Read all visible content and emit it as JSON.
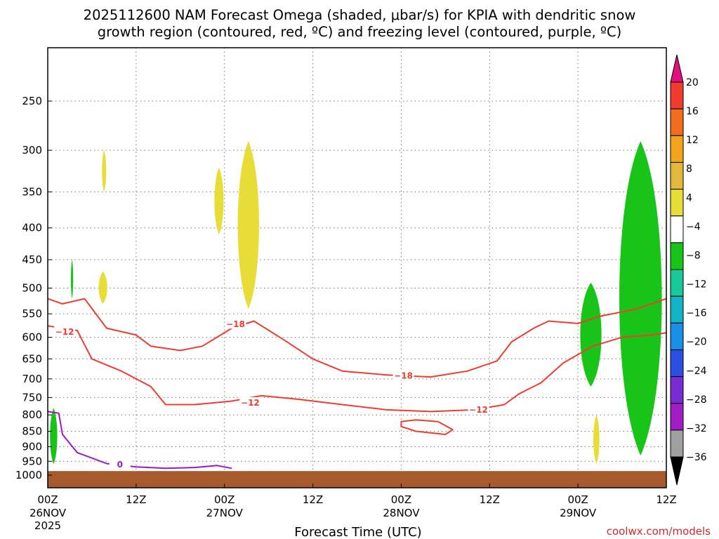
{
  "title": {
    "line1": "2025112600 NAM Forecast Omega (shaded, μbar/s) for KPIA with dendritic snow",
    "line2": "growth region (contoured, red, ºC) and freezing level (contoured, purple, ºC)"
  },
  "chart_data": {
    "type": "time-height cross section (filled contours + line contours)",
    "xlabel": "Forecast Time (UTC)",
    "x_range_hours": [
      0,
      84
    ],
    "x_ticks": [
      {
        "hour": 0,
        "label": "00Z",
        "sub": "26NOV",
        "sub2": "2025"
      },
      {
        "hour": 12,
        "label": "12Z",
        "sub": "",
        "sub2": ""
      },
      {
        "hour": 24,
        "label": "00Z",
        "sub": "27NOV",
        "sub2": ""
      },
      {
        "hour": 36,
        "label": "12Z",
        "sub": "",
        "sub2": ""
      },
      {
        "hour": 48,
        "label": "00Z",
        "sub": "28NOV",
        "sub2": ""
      },
      {
        "hour": 60,
        "label": "12Z",
        "sub": "",
        "sub2": ""
      },
      {
        "hour": 72,
        "label": "00Z",
        "sub": "29NOV",
        "sub2": ""
      },
      {
        "hour": 84,
        "label": "12Z",
        "sub": "",
        "sub2": ""
      }
    ],
    "y_axis": "pressure (hPa), log scale, inverted",
    "y_ticks": [
      250,
      300,
      350,
      400,
      450,
      500,
      550,
      600,
      650,
      700,
      750,
      800,
      850,
      900,
      950,
      1000
    ],
    "gridlines": "dotted",
    "colorbar": {
      "field": "omega (μbar/s)",
      "labels": [
        20,
        16,
        12,
        8,
        4,
        -4,
        -8,
        -12,
        -16,
        -20,
        -24,
        -28,
        -32,
        -36
      ],
      "bins": [
        {
          "range": ">20",
          "color": "#e0117e"
        },
        {
          "range": "16 to 20",
          "color": "#f03c2e"
        },
        {
          "range": "12 to 16",
          "color": "#f16e1f"
        },
        {
          "range": "8 to 12",
          "color": "#f2a51c"
        },
        {
          "range": "4 to 8",
          "color": "#e2b93a"
        },
        {
          "range": "4 to 4 (yellow)",
          "color": "#e8dc36"
        },
        {
          "range": "-4 to 4",
          "color": "#ffffff"
        },
        {
          "range": "-8 to -4",
          "color": "#19c419"
        },
        {
          "range": "-12 to -8",
          "color": "#19c99a"
        },
        {
          "range": "-16 to -12",
          "color": "#12b4c7"
        },
        {
          "range": "-20 to -16",
          "color": "#1a8fe8"
        },
        {
          "range": "-24 to -20",
          "color": "#2b4fe0"
        },
        {
          "range": "-28 to -24",
          "color": "#7a2bd1"
        },
        {
          "range": "-32 to -28",
          "color": "#a21cc4"
        },
        {
          "range": "-36 to -32",
          "color": "#a0a0a0"
        },
        {
          "range": "<-36",
          "color": "#000000"
        }
      ]
    },
    "omega_shading": [
      {
        "sign": "rising (green)",
        "color": "#19c419",
        "hour": [
          0.2,
          1.4
        ],
        "p": [
          780,
          960
        ]
      },
      {
        "sign": "rising (green)",
        "color": "#19c419",
        "hour": [
          3.2,
          3.4
        ],
        "p": [
          450,
          520
        ]
      },
      {
        "sign": "sinking (yellow)",
        "color": "#e8dc36",
        "hour": [
          6.8,
          8.2
        ],
        "p": [
          470,
          530
        ]
      },
      {
        "sign": "sinking (yellow)",
        "color": "#e8dc36",
        "hour": [
          7.3,
          8.0
        ],
        "p": [
          300,
          350
        ]
      },
      {
        "sign": "sinking (yellow)",
        "color": "#e8dc36",
        "hour": [
          22.5,
          24.0
        ],
        "p": [
          320,
          410
        ]
      },
      {
        "sign": "sinking (yellow)",
        "color": "#e8dc36",
        "hour": [
          25.5,
          29.0
        ],
        "p": [
          290,
          540
        ]
      },
      {
        "sign": "sinking (yellow)",
        "color": "#e8dc36",
        "hour": [
          74.0,
          75.0
        ],
        "p": [
          800,
          960
        ]
      },
      {
        "sign": "rising (green)",
        "color": "#19c419",
        "hour": [
          72.0,
          75.5
        ],
        "p": [
          490,
          720
        ]
      },
      {
        "sign": "rising (green/teal)",
        "color": "#19c419",
        "hour": [
          77.0,
          84.0
        ],
        "p": [
          290,
          930
        ]
      }
    ],
    "series": [
      {
        "name": "-18",
        "color": "#f03c2e",
        "points": [
          [
            0,
            520
          ],
          [
            2,
            530
          ],
          [
            5,
            520
          ],
          [
            8,
            580
          ],
          [
            12,
            595
          ],
          [
            14,
            620
          ],
          [
            18,
            630
          ],
          [
            21,
            620
          ],
          [
            25,
            580
          ],
          [
            28,
            565
          ],
          [
            32,
            605
          ],
          [
            36,
            650
          ],
          [
            40,
            680
          ],
          [
            46,
            690
          ],
          [
            52,
            695
          ],
          [
            57,
            680
          ],
          [
            61,
            655
          ],
          [
            63,
            610
          ],
          [
            66,
            580
          ],
          [
            68,
            565
          ],
          [
            72,
            570
          ],
          [
            75,
            555
          ],
          [
            80,
            540
          ],
          [
            84,
            520
          ]
        ]
      },
      {
        "name": "-12",
        "color": "#f03c2e",
        "points": [
          [
            0,
            575
          ],
          [
            4,
            585
          ],
          [
            6,
            650
          ],
          [
            10,
            680
          ],
          [
            14,
            720
          ],
          [
            16,
            770
          ],
          [
            20,
            770
          ],
          [
            25,
            760
          ],
          [
            29,
            745
          ],
          [
            34,
            755
          ],
          [
            40,
            770
          ],
          [
            46,
            785
          ],
          [
            52,
            790
          ],
          [
            58,
            785
          ],
          [
            62,
            770
          ],
          [
            64,
            740
          ],
          [
            67,
            710
          ],
          [
            70,
            660
          ],
          [
            74,
            620
          ],
          [
            78,
            600
          ],
          [
            82,
            595
          ],
          [
            84,
            590
          ]
        ]
      },
      {
        "name": "-12 (closed)",
        "color": "#f03c2e",
        "points": [
          [
            48,
            820
          ],
          [
            50,
            815
          ],
          [
            53,
            820
          ],
          [
            55,
            845
          ],
          [
            54,
            860
          ],
          [
            50,
            850
          ],
          [
            48,
            835
          ]
        ]
      },
      {
        "name": "0",
        "color": "#9b18c7",
        "points": [
          [
            0,
            790
          ],
          [
            1.5,
            795
          ],
          [
            2,
            860
          ],
          [
            4,
            920
          ],
          [
            8,
            958
          ],
          [
            12,
            970
          ],
          [
            16,
            975
          ],
          [
            20,
            972
          ],
          [
            23,
            965
          ],
          [
            25,
            975
          ]
        ]
      }
    ],
    "contour_labels": [
      {
        "text": "−18",
        "hour": 25.5,
        "p": 572,
        "color": "#f03c2e"
      },
      {
        "text": "−18",
        "hour": 48.3,
        "p": 692,
        "color": "#f03c2e"
      },
      {
        "text": "−12",
        "hour": 2.3,
        "p": 588,
        "color": "#f03c2e"
      },
      {
        "text": "−12",
        "hour": 27.5,
        "p": 765,
        "color": "#f03c2e"
      },
      {
        "text": "−12",
        "hour": 58.5,
        "p": 785,
        "color": "#f03c2e"
      },
      {
        "text": "0",
        "hour": 9.8,
        "p": 962,
        "color": "#9b18c7"
      }
    ],
    "terrain": {
      "color": "#a65a2e",
      "top_p": 985
    }
  },
  "credit": "coolwx.com/models"
}
